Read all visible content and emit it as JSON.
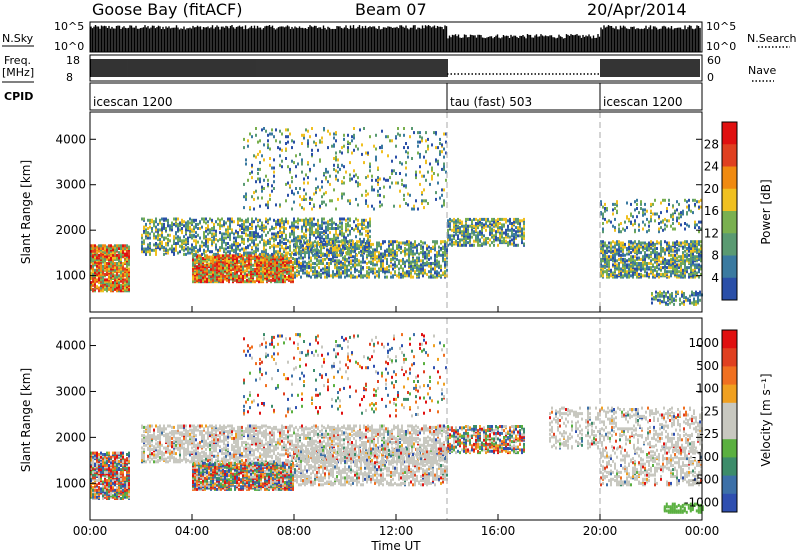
{
  "header": {
    "station": "Goose Bay (fitACF)",
    "beam": "Beam 07",
    "date": "20/Apr/2014"
  },
  "strip_labels": {
    "nsky": "N.Sky",
    "nsky_ticks": [
      "10^5",
      "10^0"
    ],
    "freq_line1": "Freq.",
    "freq_line2": "[MHz]",
    "freq_ticks": [
      "18",
      "8"
    ],
    "cpid": "CPID",
    "nsearch": "N.Search",
    "nsearch_ticks": [
      "10^5",
      "10^0"
    ],
    "nave": "Nave",
    "nave_ticks": [
      "60",
      "0"
    ]
  },
  "cpid_segments": [
    {
      "label": "icescan 1200",
      "start_hour": 0,
      "end_hour": 14
    },
    {
      "label": "tau (fast) 503",
      "start_hour": 14,
      "end_hour": 20
    },
    {
      "label": "icescan 1200",
      "start_hour": 20,
      "end_hour": 24
    }
  ],
  "colors": {
    "power_scale": [
      "#1a1aff",
      "#2a4fa8",
      "#3a7aa0",
      "#5a9a72",
      "#7ab050",
      "#f0c020",
      "#f08a10",
      "#e04020",
      "#e01010"
    ],
    "velocity_scale": [
      "#2f4fb0",
      "#3c70a8",
      "#3c8c6a",
      "#5ab040",
      "#c8c8c0",
      "#c8c8c0",
      "#f0a020",
      "#f07020",
      "#e04020",
      "#e01010"
    ]
  },
  "chart_data": [
    {
      "type": "heatmap",
      "panel": "power",
      "ylabel": "Slant Range [km]",
      "ylim": [
        200,
        4600
      ],
      "yticks": [
        "1000",
        "2000",
        "3000",
        "4000"
      ],
      "xlim": [
        0,
        24
      ],
      "colorbar": {
        "label": "Power [dB]",
        "ticks": [
          "4",
          "8",
          "12",
          "16",
          "20",
          "24",
          "28"
        ]
      }
    },
    {
      "type": "heatmap",
      "panel": "velocity",
      "ylabel": "Slant Range [km]",
      "ylim": [
        200,
        4600
      ],
      "yticks": [
        "1000",
        "2000",
        "3000",
        "4000"
      ],
      "xlim": [
        0,
        24
      ],
      "xticks": [
        "00:00",
        "04:00",
        "08:00",
        "12:00",
        "16:00",
        "20:00",
        "00:00"
      ],
      "xlabel": "Time UT",
      "colorbar": {
        "label": "Velocity [m s⁻¹]",
        "ticks": [
          "1000",
          "500",
          "100",
          "25",
          "-25",
          "-100",
          "-500",
          "-1000"
        ]
      }
    }
  ]
}
